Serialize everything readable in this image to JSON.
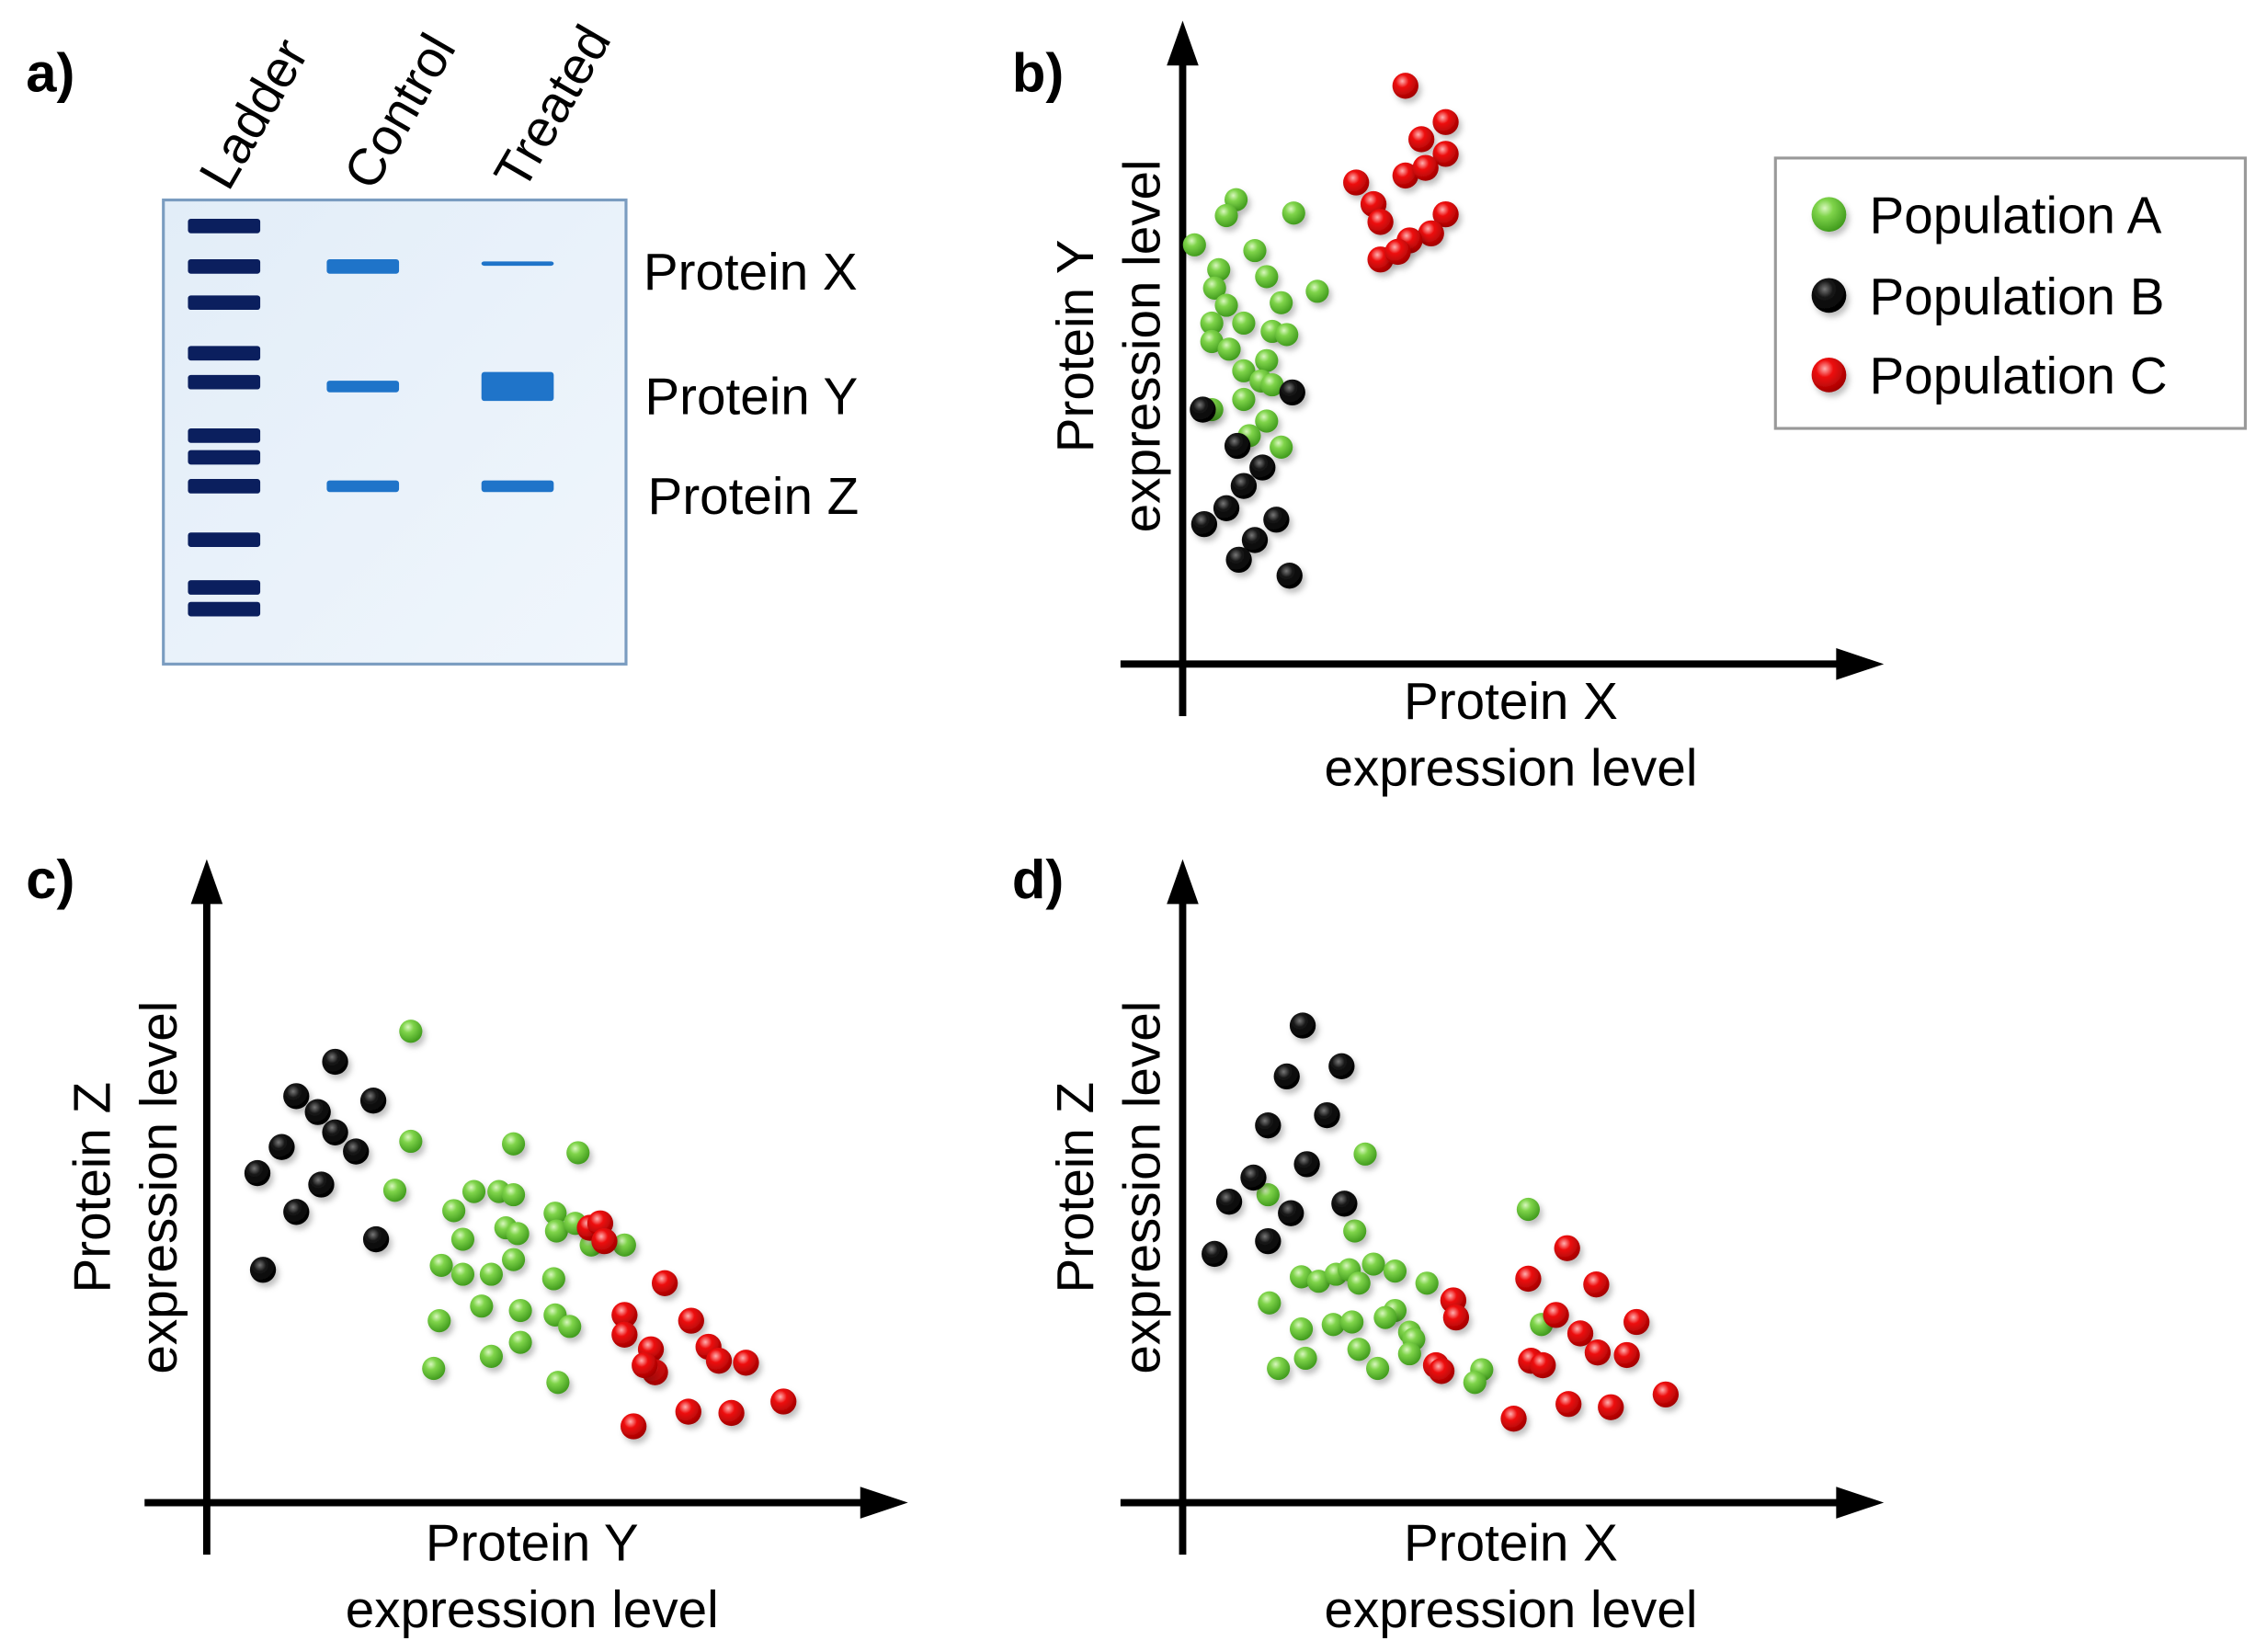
{
  "colors": {
    "population_a": "#6cc93a",
    "population_b": "#111111",
    "population_c": "#e00000",
    "gel_background": "#e8f1fb",
    "ladder_band": "#0b1f5e",
    "sample_band": "#1f74c9"
  },
  "panel_a": {
    "label": "a)",
    "lanes": [
      "Ladder",
      "Control",
      "Treated"
    ],
    "proteins": [
      "Protein X",
      "Protein Y",
      "Protein Z"
    ],
    "ladder_band_count": 11,
    "band_intensity": {
      "Control": {
        "Protein X": 1.0,
        "Protein Y": 0.8,
        "Protein Z": 0.8
      },
      "Treated": {
        "Protein X": 0.3,
        "Protein Y": 2.0,
        "Protein Z": 0.8
      }
    }
  },
  "legend": {
    "items": [
      {
        "label": "Population A",
        "key": "population_a"
      },
      {
        "label": "Population B",
        "key": "population_b"
      },
      {
        "label": "Population C",
        "key": "population_c"
      }
    ]
  },
  "chart_data": [
    {
      "id": "b",
      "panel_label": "b)",
      "type": "scatter",
      "xlabel": [
        "Protein X",
        "expression level"
      ],
      "ylabel": [
        "Protein Y",
        "expression level"
      ],
      "xlim": [
        0,
        100
      ],
      "ylim": [
        0,
        100
      ],
      "grid": false,
      "legend": "top-right",
      "series": [
        {
          "name": "Population A",
          "points": [
            [
              7.7,
              73.0
            ],
            [
              6.3,
              70.5
            ],
            [
              16.0,
              70.9
            ],
            [
              1.7,
              65.9
            ],
            [
              10.4,
              65.0
            ],
            [
              5.2,
              62.0
            ],
            [
              12.1,
              60.9
            ],
            [
              19.4,
              58.6
            ],
            [
              4.6,
              59.1
            ],
            [
              6.3,
              56.4
            ],
            [
              14.2,
              56.8
            ],
            [
              4.2,
              53.6
            ],
            [
              8.8,
              53.6
            ],
            [
              12.9,
              52.3
            ],
            [
              4.2,
              50.7
            ],
            [
              6.7,
              49.5
            ],
            [
              15.0,
              51.8
            ],
            [
              12.1,
              47.7
            ],
            [
              8.8,
              46.1
            ],
            [
              11.3,
              44.5
            ],
            [
              12.9,
              43.9
            ],
            [
              8.8,
              41.6
            ],
            [
              12.1,
              38.2
            ],
            [
              4.2,
              40.0
            ],
            [
              14.2,
              34.1
            ],
            [
              9.6,
              35.9
            ]
          ]
        },
        {
          "name": "Population B",
          "points": [
            [
              2.9,
              40.0
            ],
            [
              15.8,
              42.7
            ],
            [
              7.9,
              34.3
            ],
            [
              11.5,
              30.9
            ],
            [
              8.8,
              28.0
            ],
            [
              6.3,
              24.5
            ],
            [
              3.1,
              22.0
            ],
            [
              13.5,
              22.7
            ],
            [
              10.4,
              19.5
            ],
            [
              8.1,
              16.4
            ],
            [
              15.4,
              13.9
            ]
          ]
        },
        {
          "name": "Population C",
          "points": [
            [
              32.1,
              90.9
            ],
            [
              37.9,
              85.2
            ],
            [
              34.4,
              82.5
            ],
            [
              37.9,
              80.2
            ],
            [
              25.0,
              75.7
            ],
            [
              32.1,
              76.8
            ],
            [
              35.0,
              78.0
            ],
            [
              27.5,
              72.3
            ],
            [
              28.5,
              69.5
            ],
            [
              37.9,
              70.7
            ],
            [
              35.8,
              67.7
            ],
            [
              32.7,
              66.6
            ],
            [
              28.5,
              63.6
            ],
            [
              31.0,
              64.8
            ]
          ]
        }
      ]
    },
    {
      "id": "c",
      "panel_label": "c)",
      "type": "scatter",
      "xlabel": [
        "Protein Y",
        "expression level"
      ],
      "ylabel": [
        "Protein Z",
        "expression level"
      ],
      "xlim": [
        0,
        100
      ],
      "ylim": [
        0,
        100
      ],
      "grid": false,
      "series": [
        {
          "name": "Population A",
          "points": [
            [
              29.4,
              74.1
            ],
            [
              29.4,
              56.8
            ],
            [
              27.1,
              49.1
            ],
            [
              44.2,
              56.4
            ],
            [
              53.5,
              55.0
            ],
            [
              35.6,
              45.9
            ],
            [
              38.5,
              48.9
            ],
            [
              42.1,
              48.9
            ],
            [
              44.2,
              48.4
            ],
            [
              50.2,
              45.5
            ],
            [
              33.8,
              37.3
            ],
            [
              36.9,
              41.4
            ],
            [
              36.9,
              35.9
            ],
            [
              43.1,
              43.2
            ],
            [
              44.8,
              42.3
            ],
            [
              44.2,
              38.2
            ],
            [
              50.4,
              42.7
            ],
            [
              53.1,
              43.9
            ],
            [
              55.4,
              40.5
            ],
            [
              60.2,
              40.5
            ],
            [
              41.0,
              35.9
            ],
            [
              50.0,
              35.2
            ],
            [
              33.5,
              28.6
            ],
            [
              39.6,
              30.9
            ],
            [
              45.2,
              30.2
            ],
            [
              50.2,
              29.5
            ],
            [
              52.3,
              27.7
            ],
            [
              32.7,
              21.1
            ],
            [
              41.0,
              23.0
            ],
            [
              45.2,
              25.2
            ],
            [
              50.6,
              18.9
            ]
          ]
        },
        {
          "name": "Population B",
          "points": [
            [
              18.5,
              69.3
            ],
            [
              12.9,
              63.9
            ],
            [
              24.0,
              63.2
            ],
            [
              16.0,
              61.4
            ],
            [
              18.5,
              58.2
            ],
            [
              21.5,
              55.2
            ],
            [
              10.8,
              55.9
            ],
            [
              7.3,
              51.8
            ],
            [
              16.5,
              50.0
            ],
            [
              12.9,
              45.7
            ],
            [
              24.4,
              41.4
            ],
            [
              8.1,
              36.6
            ]
          ]
        },
        {
          "name": "Population C",
          "points": [
            [
              55.2,
              43.2
            ],
            [
              56.7,
              43.9
            ],
            [
              57.3,
              41.1
            ],
            [
              66.0,
              34.5
            ],
            [
              60.2,
              29.5
            ],
            [
              60.2,
              26.4
            ],
            [
              69.8,
              28.6
            ],
            [
              64.0,
              24.1
            ],
            [
              72.3,
              24.5
            ],
            [
              64.6,
              20.5
            ],
            [
              63.1,
              21.6
            ],
            [
              73.8,
              22.3
            ],
            [
              77.7,
              22.0
            ],
            [
              61.5,
              12.0
            ],
            [
              69.4,
              14.3
            ],
            [
              75.6,
              14.1
            ],
            [
              83.1,
              15.9
            ]
          ]
        }
      ]
    },
    {
      "id": "d",
      "panel_label": "d)",
      "type": "scatter",
      "xlabel": [
        "Protein X",
        "expression level"
      ],
      "ylabel": [
        "Protein Z",
        "expression level"
      ],
      "xlim": [
        0,
        100
      ],
      "ylim": [
        0,
        100
      ],
      "grid": false,
      "series": [
        {
          "name": "Population A",
          "points": [
            [
              26.3,
              54.8
            ],
            [
              12.3,
              48.4
            ],
            [
              24.8,
              42.7
            ],
            [
              49.8,
              46.1
            ],
            [
              17.1,
              35.5
            ],
            [
              19.6,
              34.8
            ],
            [
              22.1,
              35.9
            ],
            [
              24.0,
              36.6
            ],
            [
              25.4,
              34.5
            ],
            [
              27.5,
              37.5
            ],
            [
              30.6,
              36.4
            ],
            [
              35.2,
              34.5
            ],
            [
              12.5,
              31.4
            ],
            [
              30.6,
              30.2
            ],
            [
              32.7,
              26.8
            ],
            [
              17.1,
              27.3
            ],
            [
              21.7,
              28.0
            ],
            [
              24.4,
              28.4
            ],
            [
              29.2,
              29.1
            ],
            [
              33.3,
              25.7
            ],
            [
              17.7,
              22.7
            ],
            [
              25.4,
              24.1
            ],
            [
              28.1,
              21.1
            ],
            [
              32.7,
              23.4
            ],
            [
              13.8,
              21.1
            ],
            [
              43.1,
              20.9
            ],
            [
              42.1,
              18.9
            ],
            [
              51.7,
              28.0
            ]
          ]
        },
        {
          "name": "Population B",
          "points": [
            [
              17.3,
              75.0
            ],
            [
              22.9,
              68.6
            ],
            [
              15.0,
              67.0
            ],
            [
              20.8,
              60.9
            ],
            [
              12.3,
              59.3
            ],
            [
              17.9,
              53.2
            ],
            [
              10.2,
              51.1
            ],
            [
              6.7,
              47.3
            ],
            [
              15.6,
              45.5
            ],
            [
              23.3,
              47.0
            ],
            [
              12.3,
              41.1
            ],
            [
              4.6,
              39.1
            ]
          ]
        },
        {
          "name": "Population C",
          "points": [
            [
              55.4,
              40.0
            ],
            [
              49.8,
              35.2
            ],
            [
              59.6,
              34.3
            ],
            [
              39.0,
              31.8
            ],
            [
              39.4,
              29.1
            ],
            [
              53.8,
              29.5
            ],
            [
              65.4,
              28.4
            ],
            [
              57.3,
              26.6
            ],
            [
              50.2,
              22.3
            ],
            [
              59.8,
              23.6
            ],
            [
              64.0,
              23.2
            ],
            [
              51.9,
              21.6
            ],
            [
              36.5,
              21.6
            ],
            [
              37.3,
              20.7
            ],
            [
              47.7,
              13.2
            ],
            [
              55.6,
              15.5
            ],
            [
              61.7,
              15.0
            ],
            [
              69.6,
              17.0
            ]
          ]
        }
      ]
    }
  ]
}
